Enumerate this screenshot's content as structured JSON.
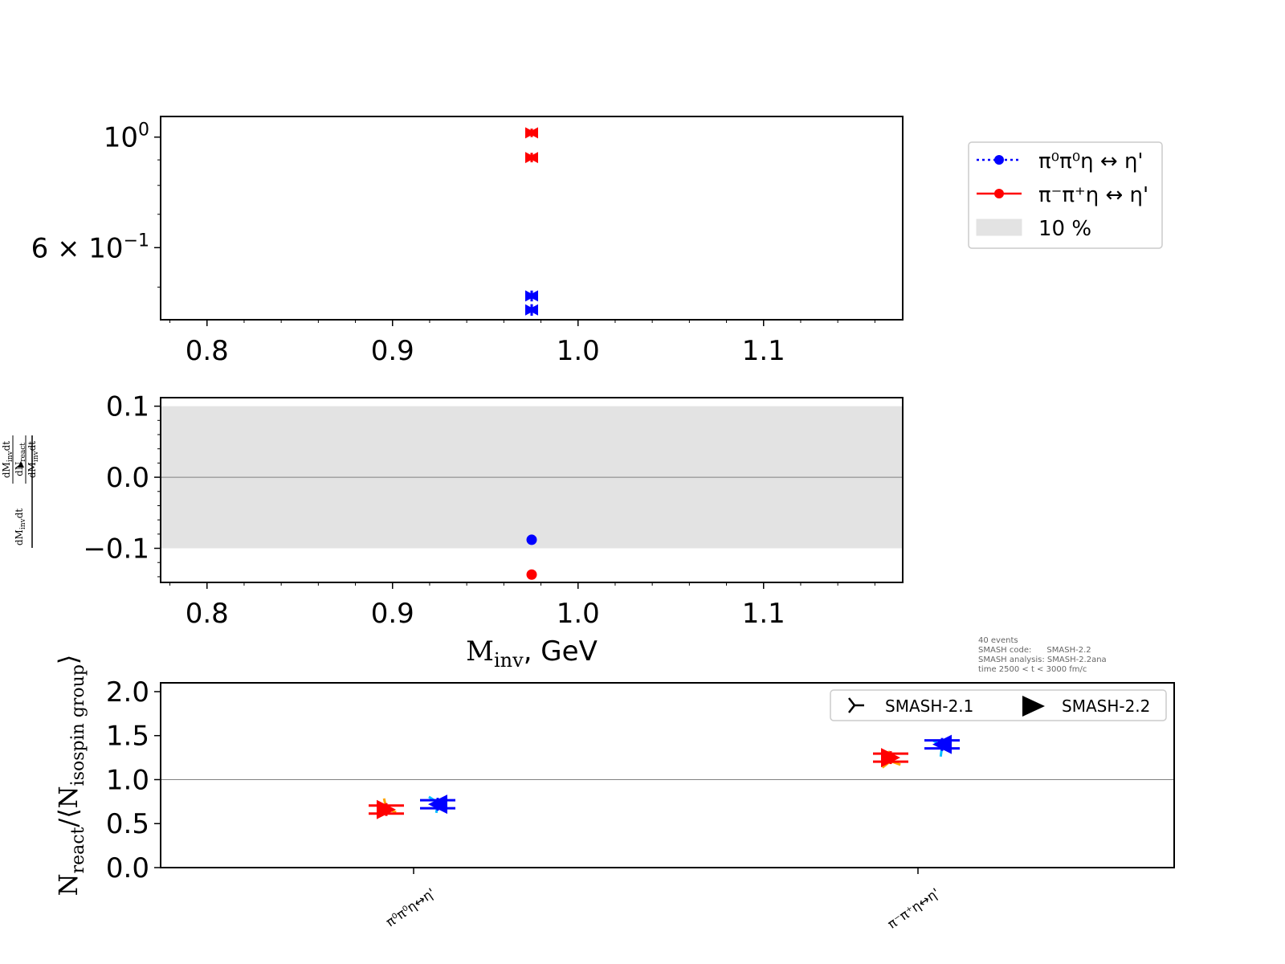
{
  "colors": {
    "pi0pi0eta": "#0000ff",
    "pimpipeta": "#ff0000",
    "pi0pi0eta_21": "#00bfff",
    "pimpipeta_21": "#ffa500",
    "band": "#e3e3e3",
    "axis": "#000000",
    "refline": "#808080"
  },
  "chart_data": [
    {
      "id": "top",
      "type": "scatter",
      "yscale": "log",
      "xlim": [
        0.775,
        1.175
      ],
      "ylim": [
        0.43,
        1.1
      ],
      "xticks": [
        0.8,
        0.9,
        1.0,
        1.1
      ],
      "xtick_labels": [
        "0.8",
        "0.9",
        "1.0",
        "1.1"
      ],
      "ytick_labels": [
        {
          "value": 1.0,
          "base": "10",
          "exp": "0"
        },
        {
          "value": 0.6,
          "base": "6 × 10",
          "exp": "−1"
        }
      ],
      "yminor": [
        0.9,
        0.8,
        0.7,
        0.5
      ],
      "series": [
        {
          "name": "π⁰π⁰η ↔ η'",
          "color_key": "pi0pi0eta",
          "points": [
            {
              "x": 0.975,
              "y": 0.48,
              "err": 0.012
            },
            {
              "x": 0.975,
              "y": 0.45,
              "err": 0.012
            }
          ]
        },
        {
          "name": "π⁻π⁺η ↔ η'",
          "color_key": "pimpipeta",
          "points": [
            {
              "x": 0.975,
              "y": 1.02,
              "err": 0.02
            },
            {
              "x": 0.975,
              "y": 0.91,
              "err": 0.02
            }
          ]
        }
      ],
      "legend": {
        "placement": "right",
        "entries": [
          {
            "label": "π⁰π⁰η ↔ η'",
            "style": "dotted",
            "color_key": "pi0pi0eta"
          },
          {
            "label": "π⁻π⁺η ↔ η'",
            "style": "solid",
            "color_key": "pimpipeta"
          },
          {
            "label": "10 %",
            "style": "patch",
            "color_key": "band"
          }
        ]
      }
    },
    {
      "id": "middle",
      "type": "scatter",
      "xlim": [
        0.775,
        1.175
      ],
      "ylim": [
        -0.148,
        0.112
      ],
      "xticks": [
        0.8,
        0.9,
        1.0,
        1.1
      ],
      "xtick_labels": [
        "0.8",
        "0.9",
        "1.0",
        "1.1"
      ],
      "yticks": [
        0.1,
        0.0,
        -0.1
      ],
      "ytick_labels": [
        "0.1",
        "0.0",
        "−0.1"
      ],
      "band": [
        -0.1,
        0.1
      ],
      "refline": 0.0,
      "xlabel_main": "M",
      "xlabel_sub": "inv",
      "xlabel_rest": ", GeV",
      "ylabel": {
        "num_left": "dM",
        "num_left_sub": "inv",
        "num_left_rest": "dt",
        "num_right": "dM",
        "num_right_sub": "inv",
        "num_right_rest": "dt",
        "den_top": "dN",
        "den_top_sub": "react",
        "den_bottom": "dM",
        "den_bottom_sub": "inv",
        "den_bottom_rest": "dt"
      },
      "series": [
        {
          "name": "π⁰π⁰η ↔ η'",
          "color_key": "pi0pi0eta",
          "points": [
            {
              "x": 0.975,
              "y": -0.088
            }
          ]
        },
        {
          "name": "π⁻π⁺η ↔ η'",
          "color_key": "pimpipeta",
          "points": [
            {
              "x": 0.975,
              "y": -0.137
            }
          ]
        }
      ]
    },
    {
      "id": "bottom",
      "type": "scatter",
      "ylim": [
        0.0,
        2.1
      ],
      "yticks": [
        0.0,
        0.5,
        1.0,
        1.5,
        2.0
      ],
      "ytick_labels": [
        "0.0",
        "0.5",
        "1.0",
        "1.5",
        "2.0"
      ],
      "refline": 1.0,
      "categories": [
        "π⁰π⁰η↔η'",
        "π⁻π⁺η↔η'"
      ],
      "ylabel": {
        "a": "N",
        "a_sub": "react",
        "b": "/⟨N",
        "b_sub": "isospin group",
        "c": "⟩"
      },
      "series": [
        {
          "name": "SMASH-2.1",
          "marker": "tri",
          "points": [
            {
              "category": 0,
              "group": "pi0pi0eta",
              "y": 0.74
            },
            {
              "category": 1,
              "group": "pi0pi0eta",
              "y": 1.38
            },
            {
              "category": 0,
              "group": "pimpipeta",
              "y": 0.67
            },
            {
              "category": 1,
              "group": "pimpipeta",
              "y": 1.21
            }
          ]
        },
        {
          "name": "SMASH-2.2",
          "marker": "triangle",
          "points": [
            {
              "category": 0,
              "group": "pi0pi0eta",
              "y": 0.72
            },
            {
              "category": 1,
              "group": "pi0pi0eta",
              "y": 1.4
            },
            {
              "category": 0,
              "group": "pimpipeta",
              "y": 0.66
            },
            {
              "category": 1,
              "group": "pimpipeta",
              "y": 1.25
            }
          ]
        }
      ],
      "legend": {
        "placement": "top-right",
        "entries": [
          {
            "label": "SMASH-2.1",
            "marker": "tri"
          },
          {
            "label": "SMASH-2.2",
            "marker": "triangle"
          }
        ]
      },
      "annotation": [
        "40 events",
        "SMASH code:      SMASH-2.2",
        "SMASH analysis: SMASH-2.2ana",
        "time 2500 < t < 3000 fm/c"
      ]
    }
  ]
}
